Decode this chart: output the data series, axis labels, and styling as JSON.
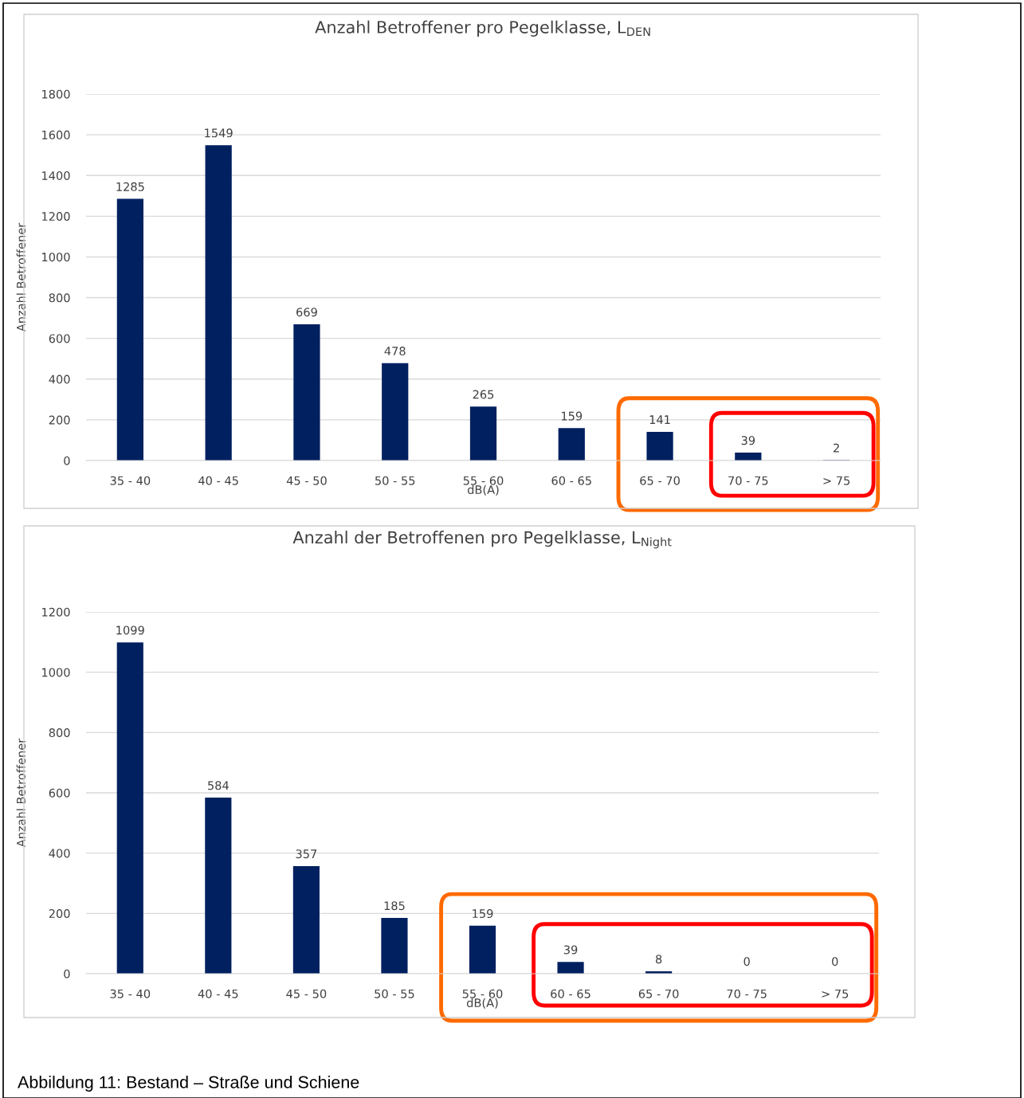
{
  "chart_data": [
    {
      "type": "bar",
      "title": "Anzahl Betroffener pro Pegelklasse, L$_{DEN}$",
      "xlabel": "dB(A)",
      "ylabel": "Anzahl Betroffener",
      "categories": [
        "35 - 40",
        "40 - 45",
        "45 - 50",
        "50 - 55",
        "55 - 60",
        "60 - 65",
        "65 - 70",
        "70 - 75",
        "> 75"
      ],
      "values": [
        1285,
        1549,
        669,
        478,
        265,
        159,
        141,
        39,
        2
      ],
      "color": "#002060",
      "ylim": [
        0,
        1800
      ],
      "yticks": [
        0,
        200,
        400,
        600,
        800,
        1000,
        1200,
        1400,
        1600,
        1800
      ],
      "grid": "y",
      "data_labels": true,
      "legend": false
    },
    {
      "type": "bar",
      "title": "Anzahl der Betroffenen pro Pegelklasse, L$_{Night}$",
      "xlabel": "dB(A)",
      "ylabel": "Anzahl Betroffener",
      "categories": [
        "35 - 40",
        "40 - 45",
        "45 - 50",
        "50 - 55",
        "55 - 60",
        "60 - 65",
        "65 - 70",
        "70 - 75",
        "> 75"
      ],
      "values": [
        1099,
        584,
        357,
        185,
        159,
        39,
        8,
        0,
        0
      ],
      "color": "#002060",
      "ylim": [
        0,
        1200
      ],
      "yticks": [
        0,
        200,
        400,
        600,
        800,
        1000,
        1200
      ],
      "grid": "y",
      "data_labels": true,
      "legend": false,
      "annotations": [
        "Abbildung 11: Bestand – Straße und Schiene"
      ]
    }
  ]
}
